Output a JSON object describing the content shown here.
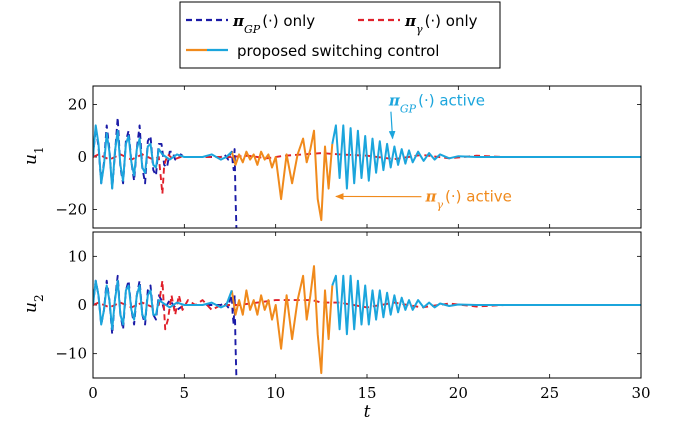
{
  "chart_data": {
    "type": "line",
    "legend": {
      "placement": "top-center",
      "entries": [
        {
          "name": "π_GP(·) only",
          "prefix": "π",
          "sub": "GP",
          "suffix": "(·) only",
          "color": "#1a1aa6",
          "dash": "dashed"
        },
        {
          "name": "π_γ(·) only",
          "prefix": "π",
          "sub": "γ",
          "suffix": "(·) only",
          "color": "#e0202a",
          "dash": "dashed"
        },
        {
          "name": "proposed switching control",
          "prefix": "",
          "sub": "",
          "suffix": "proposed switching control",
          "colors": [
            "#f08a1c",
            "#1ba5dc"
          ],
          "dash": "solid"
        }
      ]
    },
    "x": {
      "label": "t",
      "range": [
        0,
        30
      ],
      "ticks": [
        0,
        5,
        10,
        15,
        20,
        25,
        30
      ]
    },
    "panels": [
      {
        "ylabel_base": "u",
        "ylabel_sub": "1",
        "ylim": [
          -27,
          27
        ],
        "yticks": [
          -20,
          0,
          20
        ],
        "yticklabels": [
          "−20",
          "0",
          "20"
        ],
        "annotations": [
          {
            "prefix": "π",
            "sub": "GP",
            "suffix": "(·) active",
            "color": "#1ba5dc",
            "text_at": [
              16.2,
              19.5
            ],
            "arrow_to": [
              16.4,
              7
            ]
          },
          {
            "prefix": "π",
            "sub": "γ",
            "suffix": "(·) active",
            "color": "#f08a1c",
            "text_at": [
              18.2,
              -17
            ],
            "arrow_to": [
              13.3,
              -15
            ]
          }
        ],
        "series": [
          {
            "name": "π_GP(·) only",
            "color": "#1a1aa6",
            "dash": "dashed",
            "x": [
              0,
              0.15,
              0.3,
              0.45,
              0.6,
              0.75,
              0.9,
              1.05,
              1.2,
              1.35,
              1.5,
              1.65,
              1.8,
              1.95,
              2.1,
              2.25,
              2.4,
              2.55,
              2.7,
              2.85,
              3.0,
              3.15,
              3.3,
              3.45,
              3.6,
              3.75,
              3.9,
              4.05,
              4.2,
              4.35,
              4.5,
              4.65,
              4.8,
              5.0,
              5.5,
              6.0,
              6.5,
              7.0,
              7.2,
              7.4,
              7.5,
              7.6,
              7.65,
              7.7,
              7.75,
              7.8,
              7.85,
              7.9
            ],
            "y": [
              0,
              11,
              4,
              -10,
              -2,
              12,
              3,
              -12,
              1,
              15,
              -4,
              -10,
              6,
              10,
              -2,
              -9,
              3,
              12,
              -4,
              -10,
              6,
              8,
              -5,
              -7,
              5,
              5,
              -3,
              -4,
              2,
              2,
              -1,
              -1,
              1,
              0,
              0,
              0,
              0,
              0,
              1,
              -1,
              1,
              2,
              -2,
              -5,
              3,
              -15,
              -27,
              -27
            ]
          },
          {
            "name": "π_γ(·) only",
            "color": "#e0202a",
            "dash": "dashed",
            "x": [
              0,
              0.3,
              0.6,
              0.9,
              1.2,
              1.5,
              1.8,
              2.1,
              2.4,
              2.7,
              3.0,
              3.3,
              3.6,
              3.8,
              3.9,
              4.1,
              4.4,
              4.8,
              5.5,
              6.5,
              7.5,
              8.5,
              9.5,
              10.5,
              11.5,
              12.5,
              13.5,
              15,
              16.5,
              18,
              19.5,
              21,
              22.5,
              24,
              25.5,
              27,
              28.5,
              30
            ],
            "y": [
              0,
              1,
              0,
              -1,
              0,
              1,
              0,
              -1,
              0,
              1,
              0,
              -1,
              0,
              -14,
              -3,
              1,
              -1,
              0,
              0,
              0,
              0,
              0.5,
              -0.5,
              0.5,
              1,
              1.5,
              1,
              0.5,
              -0.8,
              0.8,
              -0.5,
              0.5,
              0,
              0,
              0,
              0,
              0,
              0
            ]
          },
          {
            "name": "proposed switching control (π_γ active)",
            "color": "#f08a1c",
            "dash": "solid",
            "x": [
              7.6,
              7.8,
              8.0,
              8.2,
              8.4,
              8.6,
              8.8,
              9.0,
              9.2,
              9.4,
              9.6,
              9.8,
              10.0,
              10.3,
              10.6,
              10.9,
              11.2,
              11.5,
              11.7,
              11.9,
              12.1,
              12.3,
              12.5,
              12.7,
              12.9,
              13.1
            ],
            "y": [
              2,
              -3,
              1,
              -2,
              2,
              -1,
              1,
              -3,
              2,
              -1,
              1,
              -4,
              0,
              -16,
              1,
              -10,
              1,
              7,
              -2,
              3,
              10,
              -16,
              -24,
              4,
              -12,
              5
            ]
          },
          {
            "name": "proposed switching control (π_GP active)",
            "color": "#1ba5dc",
            "dash": "solid",
            "x": [
              0,
              0.15,
              0.3,
              0.45,
              0.6,
              0.75,
              0.9,
              1.05,
              1.2,
              1.35,
              1.5,
              1.65,
              1.8,
              1.95,
              2.1,
              2.25,
              2.4,
              2.55,
              2.7,
              2.85,
              3.0,
              3.15,
              3.3,
              3.45,
              3.6,
              3.8,
              4.2,
              4.6,
              5.0,
              5.5,
              6.0,
              6.5,
              7.0,
              7.3,
              7.6
            ],
            "y": [
              0,
              12,
              5,
              -10,
              -3,
              9,
              2,
              -12,
              2,
              10,
              -3,
              -9,
              5,
              8,
              -2,
              -7,
              3,
              7,
              -4,
              -6,
              4,
              5,
              -3,
              -4,
              3,
              1,
              -1,
              1,
              0,
              0,
              0,
              1,
              -1,
              0,
              2
            ]
          },
          {
            "name": "proposed switching control (π_GP active, tail)",
            "color": "#1ba5dc",
            "dash": "solid",
            "x": [
              13.1,
              13.3,
              13.5,
              13.7,
              13.9,
              14.1,
              14.3,
              14.5,
              14.7,
              14.9,
              15.1,
              15.3,
              15.5,
              15.7,
              15.9,
              16.1,
              16.3,
              16.5,
              16.7,
              16.9,
              17.1,
              17.3,
              17.5,
              17.8,
              18.1,
              18.4,
              18.7,
              19.0,
              19.5,
              20,
              21,
              22,
              24,
              26,
              28,
              30
            ],
            "y": [
              5,
              12,
              -8,
              12,
              -12,
              11,
              -10,
              10,
              -8,
              8,
              -9,
              7,
              -6,
              6,
              -5,
              5,
              -4,
              4,
              -3,
              3,
              -2.5,
              2.5,
              -2,
              2,
              -1.5,
              1.5,
              -1,
              1,
              -0.5,
              0.3,
              0,
              0,
              0,
              0,
              0,
              0
            ]
          }
        ]
      },
      {
        "ylabel_base": "u",
        "ylabel_sub": "2",
        "ylim": [
          -15,
          15
        ],
        "yticks": [
          -10,
          0,
          10
        ],
        "yticklabels": [
          "−10",
          "0",
          "10"
        ],
        "annotations": [],
        "series": [
          {
            "name": "π_GP(·) only",
            "color": "#1a1aa6",
            "dash": "dashed",
            "x": [
              0,
              0.15,
              0.3,
              0.45,
              0.6,
              0.75,
              0.9,
              1.05,
              1.2,
              1.35,
              1.5,
              1.65,
              1.8,
              1.95,
              2.1,
              2.25,
              2.4,
              2.55,
              2.7,
              2.85,
              3.0,
              3.15,
              3.3,
              3.45,
              3.6,
              3.75,
              3.9,
              4.2,
              4.6,
              5.0,
              5.5,
              6.0,
              6.5,
              7.0,
              7.2,
              7.4,
              7.5,
              7.6,
              7.65,
              7.7,
              7.75,
              7.8,
              7.85,
              7.9
            ],
            "y": [
              0,
              5,
              2,
              -4,
              -1,
              5,
              1,
              -6,
              1,
              6,
              -2,
              -5,
              3,
              5,
              -1,
              -4,
              2,
              5,
              -2,
              -4,
              3,
              4,
              -2,
              -3,
              2,
              1,
              -1,
              1,
              -1,
              0,
              0,
              0,
              0,
              0,
              0.5,
              -0.5,
              1,
              2,
              -2,
              -4,
              2,
              -8,
              -15,
              -15
            ]
          },
          {
            "name": "π_γ(·) only",
            "color": "#e0202a",
            "dash": "dashed",
            "x": [
              0,
              0.3,
              0.6,
              0.9,
              1.2,
              1.5,
              1.8,
              2.1,
              2.4,
              2.7,
              3.0,
              3.3,
              3.6,
              3.8,
              3.95,
              4.1,
              4.3,
              4.5,
              4.7,
              4.9,
              5.2,
              5.6,
              6.0,
              6.5,
              7.0,
              8,
              9,
              10,
              11,
              12,
              12.5,
              13.5,
              15,
              16.5,
              18,
              19.5,
              21,
              22.5,
              24,
              25.5,
              27,
              28.5,
              30
            ],
            "y": [
              0,
              0.5,
              0,
              -0.5,
              0,
              0.5,
              0,
              -0.5,
              0,
              0.5,
              0,
              -0.5,
              0,
              5,
              -5,
              -3,
              2,
              -2,
              2,
              -1,
              1,
              0,
              1,
              -1,
              0,
              0,
              0.5,
              1,
              1,
              1,
              0.5,
              0.5,
              -0.5,
              0.5,
              -0.5,
              0.3,
              -0.3,
              0,
              0,
              0,
              0,
              0,
              0
            ]
          },
          {
            "name": "proposed switching control (π_γ active)",
            "color": "#f08a1c",
            "dash": "solid",
            "x": [
              7.6,
              7.8,
              8.0,
              8.2,
              8.4,
              8.6,
              8.8,
              9.0,
              9.2,
              9.4,
              9.6,
              9.8,
              10.0,
              10.3,
              10.6,
              10.9,
              11.2,
              11.5,
              11.7,
              11.9,
              12.1,
              12.3,
              12.5,
              12.7,
              12.9,
              13.1
            ],
            "y": [
              3,
              -2,
              1,
              -2,
              3,
              -1,
              1,
              -2,
              2,
              -1,
              1,
              -3,
              0,
              -9,
              2,
              -7,
              1,
              6,
              -3,
              2,
              8,
              -6,
              -14,
              3,
              -7,
              4
            ]
          },
          {
            "name": "proposed switching control (π_GP active)",
            "color": "#1ba5dc",
            "dash": "solid",
            "x": [
              0,
              0.15,
              0.3,
              0.45,
              0.6,
              0.75,
              0.9,
              1.05,
              1.2,
              1.35,
              1.5,
              1.65,
              1.8,
              1.95,
              2.1,
              2.25,
              2.4,
              2.55,
              2.7,
              2.85,
              3.0,
              3.15,
              3.3,
              3.45,
              3.6,
              3.8,
              4.2,
              4.6,
              5.0,
              5.5,
              6.0,
              6.5,
              7.0,
              7.3,
              7.6
            ],
            "y": [
              0,
              5,
              2,
              -4,
              -1,
              4,
              1,
              -5,
              1,
              5,
              -2,
              -4,
              3,
              4,
              -1,
              -3,
              2,
              4,
              -2,
              -3,
              2,
              3,
              -2,
              -2,
              1,
              0.5,
              -0.5,
              0.5,
              0,
              0,
              0,
              0.5,
              -0.5,
              0,
              3
            ]
          },
          {
            "name": "proposed switching control (π_GP active, tail)",
            "color": "#1ba5dc",
            "dash": "solid",
            "x": [
              13.1,
              13.3,
              13.5,
              13.7,
              13.9,
              14.1,
              14.3,
              14.5,
              14.7,
              14.9,
              15.1,
              15.3,
              15.5,
              15.7,
              15.9,
              16.1,
              16.3,
              16.5,
              16.7,
              16.9,
              17.1,
              17.3,
              17.5,
              17.8,
              18.1,
              18.4,
              18.7,
              19.0,
              19.5,
              20,
              21,
              22,
              24,
              26,
              28,
              30
            ],
            "y": [
              4,
              6,
              -5,
              6,
              -6,
              6,
              -5,
              5,
              -4,
              4,
              -4,
              3,
              -3,
              3,
              -2.5,
              2.5,
              -2,
              2,
              -1.5,
              1.5,
              -1,
              1,
              -1,
              1,
              -0.5,
              0.5,
              -0.5,
              0.3,
              -0.2,
              0.1,
              0,
              0,
              0,
              0,
              0,
              0
            ]
          }
        ]
      }
    ]
  }
}
